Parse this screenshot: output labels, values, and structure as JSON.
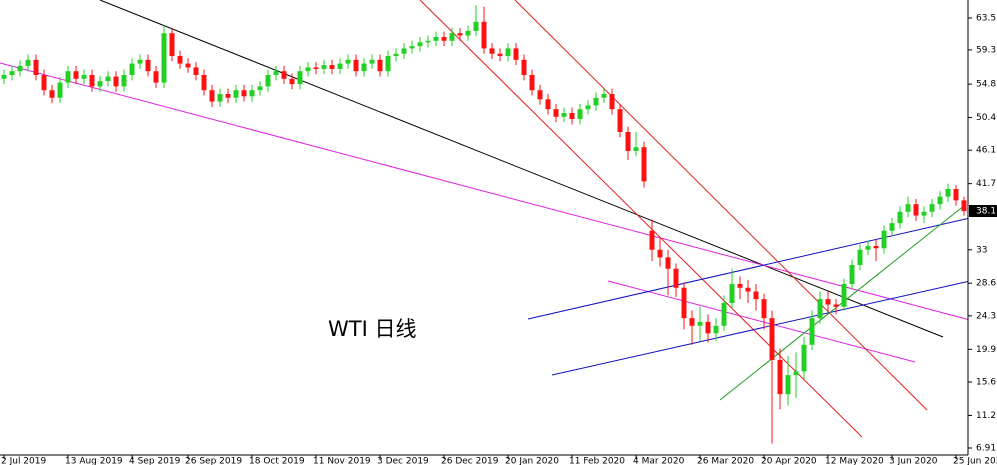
{
  "chart_data": {
    "type": "candlestick",
    "annotation": "WTI 日线",
    "up_color": "#22d022",
    "down_color": "#ff1010",
    "categories": [
      "2 Jul 2019",
      null,
      null,
      null,
      null,
      null,
      null,
      null,
      "13 Aug 2019",
      null,
      null,
      null,
      null,
      null,
      null,
      null,
      "4 Sep 2019",
      null,
      null,
      null,
      null,
      null,
      null,
      "26 Sep 2019",
      null,
      null,
      null,
      null,
      null,
      null,
      null,
      "18 Oct 2019",
      null,
      null,
      null,
      null,
      null,
      null,
      null,
      "11 Nov 2019",
      null,
      null,
      null,
      null,
      null,
      null,
      null,
      "3 Dec 2019",
      null,
      null,
      null,
      null,
      null,
      null,
      null,
      "26 Dec 2019",
      null,
      null,
      null,
      null,
      null,
      null,
      null,
      "20 Jan 2020",
      null,
      null,
      null,
      null,
      null,
      null,
      null,
      "11 Feb 2020",
      null,
      null,
      null,
      null,
      null,
      null,
      null,
      "4 Mar 2020",
      null,
      null,
      null,
      null,
      null,
      null,
      null,
      "26 Mar 2020",
      null,
      null,
      null,
      null,
      null,
      null,
      null,
      "20 Apr 2020",
      null,
      null,
      null,
      null,
      null,
      null,
      null,
      "12 May 2020",
      null,
      null,
      null,
      null,
      null,
      null,
      null,
      "3 Jun 2020",
      null,
      null,
      null,
      null,
      null,
      null,
      null,
      "25 Jun 2020",
      null
    ],
    "ohlc": [
      [
        55.5,
        56.7,
        54.8,
        56.0
      ],
      [
        56.0,
        57.2,
        55.3,
        56.5
      ],
      [
        56.5,
        57.9,
        55.8,
        57.2
      ],
      [
        57.2,
        58.7,
        56.5,
        58.0
      ],
      [
        58.0,
        58.7,
        55.3,
        56.0
      ],
      [
        56.0,
        56.7,
        53.3,
        54.0
      ],
      [
        54.0,
        54.7,
        52.3,
        53.0
      ],
      [
        53.0,
        55.7,
        52.3,
        55.0
      ],
      [
        55.0,
        57.2,
        54.3,
        56.5
      ],
      [
        56.5,
        57.2,
        54.8,
        55.5
      ],
      [
        55.5,
        56.7,
        54.8,
        56.0
      ],
      [
        56.0,
        56.7,
        53.8,
        54.5
      ],
      [
        54.5,
        55.9,
        53.8,
        55.2
      ],
      [
        55.2,
        56.5,
        54.5,
        55.8
      ],
      [
        55.8,
        56.5,
        53.8,
        54.5
      ],
      [
        54.5,
        56.7,
        53.8,
        56.0
      ],
      [
        56.0,
        58.2,
        55.3,
        57.5
      ],
      [
        57.5,
        58.7,
        56.8,
        58.0
      ],
      [
        58.0,
        58.7,
        55.8,
        56.5
      ],
      [
        56.5,
        57.2,
        54.3,
        55.0
      ],
      [
        55.0,
        62.5,
        54.3,
        61.5
      ],
      [
        61.5,
        62.2,
        57.8,
        58.5
      ],
      [
        58.5,
        59.2,
        56.8,
        57.5
      ],
      [
        57.5,
        58.2,
        56.3,
        57.0
      ],
      [
        57.0,
        57.7,
        55.3,
        56.0
      ],
      [
        56.0,
        56.7,
        53.3,
        54.0
      ],
      [
        54.0,
        54.7,
        51.8,
        52.5
      ],
      [
        52.5,
        54.2,
        51.8,
        53.5
      ],
      [
        53.5,
        54.2,
        52.3,
        53.0
      ],
      [
        53.0,
        54.7,
        52.3,
        54.0
      ],
      [
        54.0,
        54.7,
        52.5,
        53.2
      ],
      [
        53.2,
        54.7,
        52.5,
        54.0
      ],
      [
        54.0,
        55.2,
        53.3,
        54.5
      ],
      [
        54.5,
        56.7,
        53.8,
        56.0
      ],
      [
        56.0,
        57.2,
        55.3,
        56.5
      ],
      [
        56.5,
        57.2,
        54.8,
        55.5
      ],
      [
        55.5,
        56.2,
        54.1,
        54.8
      ],
      [
        54.8,
        57.2,
        54.1,
        56.5
      ],
      [
        56.5,
        57.7,
        55.8,
        57.0
      ],
      [
        57.0,
        57.7,
        56.1,
        56.8
      ],
      [
        56.8,
        58.0,
        56.1,
        57.3
      ],
      [
        57.3,
        58.0,
        56.1,
        56.8
      ],
      [
        56.8,
        58.2,
        56.1,
        57.5
      ],
      [
        57.5,
        58.7,
        56.8,
        58.0
      ],
      [
        58.0,
        58.7,
        55.8,
        56.5
      ],
      [
        56.5,
        58.2,
        55.8,
        57.5
      ],
      [
        57.5,
        58.7,
        56.8,
        58.0
      ],
      [
        58.0,
        58.7,
        55.8,
        56.5
      ],
      [
        56.5,
        59.2,
        55.8,
        58.5
      ],
      [
        58.5,
        59.5,
        57.8,
        58.8
      ],
      [
        58.8,
        60.2,
        58.1,
        59.5
      ],
      [
        59.5,
        60.5,
        58.8,
        59.8
      ],
      [
        59.8,
        61.0,
        59.1,
        60.3
      ],
      [
        60.3,
        61.2,
        59.6,
        60.5
      ],
      [
        60.5,
        61.7,
        59.8,
        61.0
      ],
      [
        61.0,
        61.7,
        59.8,
        60.5
      ],
      [
        60.5,
        62.2,
        59.8,
        61.5
      ],
      [
        61.5,
        62.2,
        60.5,
        61.2
      ],
      [
        61.2,
        62.5,
        60.5,
        61.8
      ],
      [
        61.8,
        65.2,
        61.1,
        63.0
      ],
      [
        63.0,
        65.0,
        58.8,
        59.5
      ],
      [
        59.5,
        60.2,
        58.1,
        58.8
      ],
      [
        58.8,
        59.5,
        57.8,
        58.5
      ],
      [
        58.5,
        60.2,
        57.8,
        59.5
      ],
      [
        59.5,
        60.2,
        57.3,
        58.0
      ],
      [
        58.0,
        58.7,
        55.3,
        56.0
      ],
      [
        56.0,
        56.7,
        53.3,
        54.0
      ],
      [
        54.0,
        54.7,
        52.1,
        52.8
      ],
      [
        52.8,
        53.5,
        50.8,
        51.5
      ],
      [
        51.5,
        52.2,
        49.8,
        50.5
      ],
      [
        50.5,
        51.7,
        49.8,
        51.0
      ],
      [
        51.0,
        51.7,
        49.5,
        50.2
      ],
      [
        50.2,
        52.2,
        49.5,
        51.5
      ],
      [
        51.5,
        52.7,
        50.8,
        52.0
      ],
      [
        52.0,
        53.7,
        51.3,
        53.0
      ],
      [
        53.0,
        54.2,
        52.3,
        53.5
      ],
      [
        53.5,
        54.2,
        50.8,
        51.5
      ],
      [
        51.5,
        52.2,
        47.8,
        48.5
      ],
      [
        48.5,
        49.2,
        44.8,
        46.0
      ],
      [
        46.0,
        48.5,
        45.3,
        46.5
      ],
      [
        46.5,
        47.2,
        41.2,
        42.0
      ],
      [
        35.5,
        37.0,
        31.5,
        33.0
      ],
      [
        33.0,
        34.5,
        30.8,
        32.0
      ],
      [
        32.0,
        33.0,
        27.0,
        30.5
      ],
      [
        30.5,
        31.2,
        26.8,
        28.0
      ],
      [
        28.0,
        28.7,
        22.5,
        24.0
      ],
      [
        24.0,
        25.0,
        20.5,
        23.0
      ],
      [
        23.0,
        25.5,
        21.0,
        23.5
      ],
      [
        23.5,
        24.5,
        20.8,
        22.0
      ],
      [
        22.0,
        24.0,
        21.0,
        23.0
      ],
      [
        23.0,
        27.0,
        22.3,
        26.0
      ],
      [
        26.0,
        30.5,
        25.3,
        28.5
      ],
      [
        28.5,
        29.5,
        26.5,
        28.0
      ],
      [
        28.0,
        29.0,
        26.0,
        27.5
      ],
      [
        27.5,
        28.5,
        25.0,
        26.5
      ],
      [
        26.5,
        27.2,
        22.5,
        24.0
      ],
      [
        24.0,
        25.0,
        7.5,
        18.5
      ],
      [
        18.5,
        20.0,
        12.0,
        14.0
      ],
      [
        14.0,
        19.0,
        12.5,
        16.5
      ],
      [
        16.5,
        19.5,
        13.5,
        17.0
      ],
      [
        17.0,
        21.5,
        16.0,
        20.5
      ],
      [
        20.5,
        25.0,
        19.8,
        24.0
      ],
      [
        24.0,
        27.5,
        23.3,
        26.5
      ],
      [
        26.5,
        27.5,
        24.8,
        25.8
      ],
      [
        25.8,
        26.5,
        24.5,
        25.5
      ],
      [
        25.5,
        29.2,
        25.0,
        28.5
      ],
      [
        28.5,
        31.7,
        27.8,
        31.0
      ],
      [
        31.0,
        33.7,
        30.3,
        33.0
      ],
      [
        33.0,
        34.2,
        32.3,
        33.5
      ],
      [
        33.5,
        34.3,
        31.5,
        33.2
      ],
      [
        33.2,
        36.2,
        32.5,
        35.5
      ],
      [
        35.5,
        37.2,
        34.8,
        36.5
      ],
      [
        36.5,
        38.7,
        35.8,
        38.0
      ],
      [
        38.0,
        40.0,
        37.3,
        39.0
      ],
      [
        39.0,
        39.7,
        36.8,
        37.5
      ],
      [
        37.5,
        38.7,
        36.5,
        38.0
      ],
      [
        38.0,
        39.7,
        37.3,
        39.0
      ],
      [
        39.0,
        40.7,
        38.3,
        40.0
      ],
      [
        40.0,
        41.7,
        39.3,
        41.0
      ],
      [
        41.0,
        41.5,
        38.8,
        39.5
      ],
      [
        39.5,
        40.0,
        37.5,
        38.1
      ]
    ],
    "last_price": 38.1,
    "ylim": [
      5.99,
      65.87
    ],
    "yticks": [
      6.91,
      11.2,
      15.6,
      19.9,
      24.3,
      28.6,
      33.0,
      41.7,
      46.1,
      50.4,
      54.8,
      59.3,
      63.5
    ]
  }
}
